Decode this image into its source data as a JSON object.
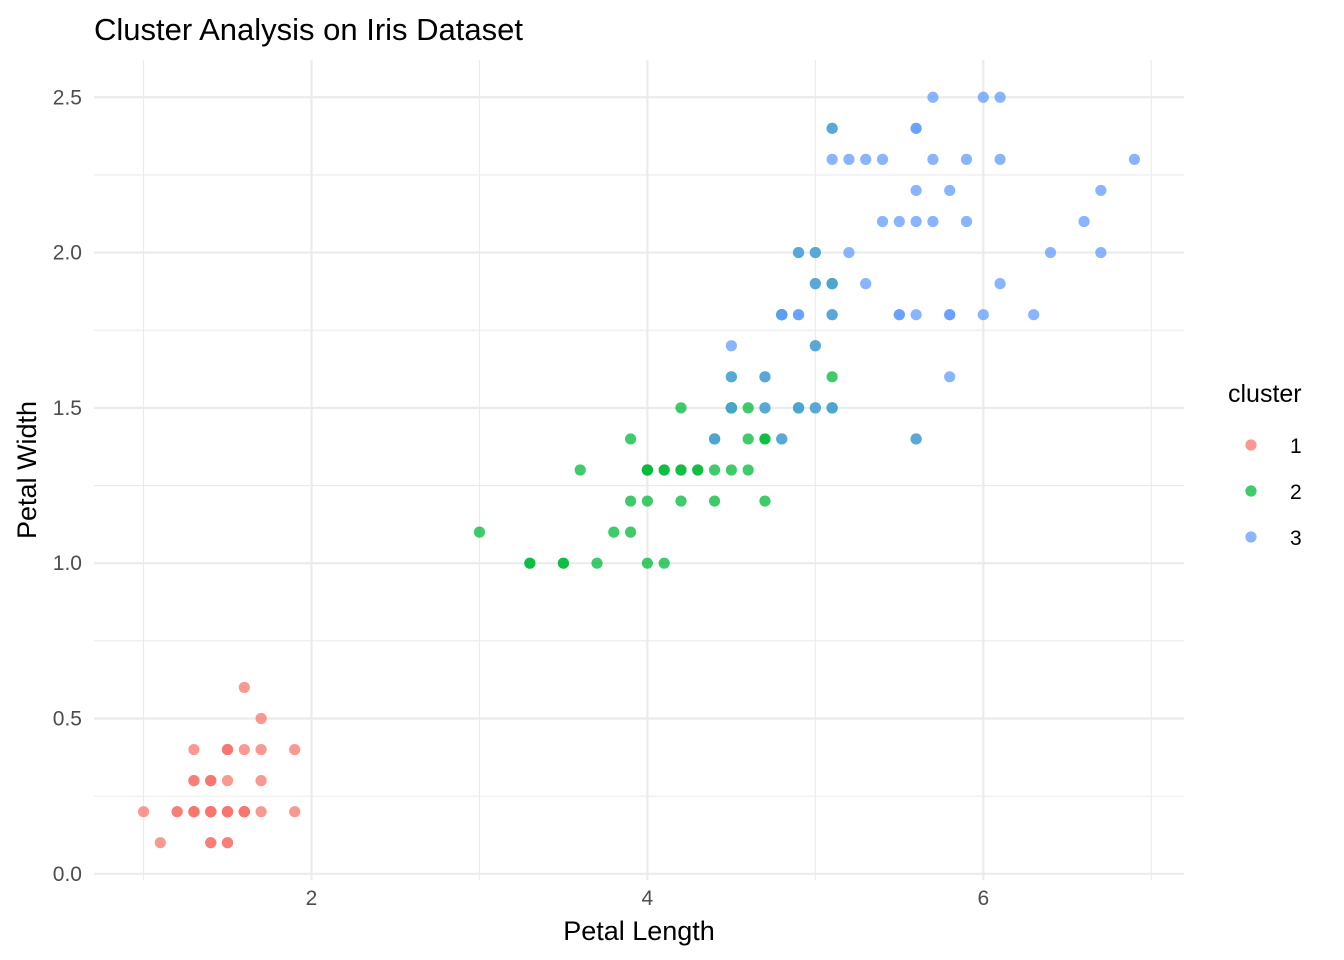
{
  "chart_data": {
    "type": "scatter",
    "title": "Cluster Analysis on Iris Dataset",
    "xlabel": "Petal Length",
    "ylabel": "Petal Width",
    "xlim": [
      0.705,
      7.195
    ],
    "ylim": [
      -0.02,
      2.62
    ],
    "x_ticks": [
      2,
      4,
      6
    ],
    "y_ticks": [
      0.0,
      0.5,
      1.0,
      1.5,
      2.0,
      2.5
    ],
    "y_tick_labels": [
      "0.0",
      "0.5",
      "1.0",
      "1.5",
      "2.0",
      "2.5"
    ],
    "grid": true,
    "legend": {
      "title": "cluster",
      "position": "right"
    },
    "series": [
      {
        "name": "1",
        "color": "#F8766D",
        "points": [
          [
            1.4,
            0.2
          ],
          [
            1.4,
            0.2
          ],
          [
            1.3,
            0.2
          ],
          [
            1.5,
            0.2
          ],
          [
            1.4,
            0.2
          ],
          [
            1.7,
            0.4
          ],
          [
            1.4,
            0.3
          ],
          [
            1.5,
            0.2
          ],
          [
            1.4,
            0.2
          ],
          [
            1.5,
            0.1
          ],
          [
            1.5,
            0.2
          ],
          [
            1.6,
            0.2
          ],
          [
            1.4,
            0.1
          ],
          [
            1.1,
            0.1
          ],
          [
            1.2,
            0.2
          ],
          [
            1.5,
            0.4
          ],
          [
            1.3,
            0.4
          ],
          [
            1.4,
            0.3
          ],
          [
            1.7,
            0.3
          ],
          [
            1.5,
            0.3
          ],
          [
            1.7,
            0.2
          ],
          [
            1.5,
            0.4
          ],
          [
            1.0,
            0.2
          ],
          [
            1.7,
            0.5
          ],
          [
            1.9,
            0.2
          ],
          [
            1.6,
            0.2
          ],
          [
            1.6,
            0.4
          ],
          [
            1.5,
            0.2
          ],
          [
            1.4,
            0.2
          ],
          [
            1.6,
            0.2
          ],
          [
            1.6,
            0.2
          ],
          [
            1.5,
            0.4
          ],
          [
            1.5,
            0.1
          ],
          [
            1.4,
            0.2
          ],
          [
            1.5,
            0.2
          ],
          [
            1.2,
            0.2
          ],
          [
            1.3,
            0.2
          ],
          [
            1.4,
            0.1
          ],
          [
            1.3,
            0.2
          ],
          [
            1.5,
            0.2
          ],
          [
            1.3,
            0.3
          ],
          [
            1.3,
            0.3
          ],
          [
            1.3,
            0.2
          ],
          [
            1.6,
            0.6
          ],
          [
            1.9,
            0.4
          ],
          [
            1.4,
            0.3
          ],
          [
            1.6,
            0.2
          ],
          [
            1.4,
            0.2
          ],
          [
            1.5,
            0.2
          ],
          [
            1.4,
            0.2
          ]
        ]
      },
      {
        "name": "2",
        "color": "#00BA38",
        "points": [
          [
            4.7,
            1.4
          ],
          [
            4.5,
            1.5
          ],
          [
            4.9,
            1.5
          ],
          [
            4.0,
            1.3
          ],
          [
            4.6,
            1.5
          ],
          [
            4.5,
            1.3
          ],
          [
            4.7,
            1.6
          ],
          [
            3.3,
            1.0
          ],
          [
            4.6,
            1.3
          ],
          [
            3.9,
            1.4
          ],
          [
            3.5,
            1.0
          ],
          [
            4.2,
            1.5
          ],
          [
            4.0,
            1.0
          ],
          [
            4.7,
            1.4
          ],
          [
            3.6,
            1.3
          ],
          [
            4.4,
            1.4
          ],
          [
            4.5,
            1.5
          ],
          [
            4.1,
            1.0
          ],
          [
            4.5,
            1.5
          ],
          [
            3.9,
            1.1
          ],
          [
            4.8,
            1.8
          ],
          [
            4.0,
            1.3
          ],
          [
            4.9,
            1.5
          ],
          [
            4.7,
            1.2
          ],
          [
            4.3,
            1.3
          ],
          [
            4.4,
            1.4
          ],
          [
            4.8,
            1.4
          ],
          [
            5.0,
            1.7
          ],
          [
            4.5,
            1.5
          ],
          [
            3.5,
            1.0
          ],
          [
            3.8,
            1.1
          ],
          [
            3.7,
            1.0
          ],
          [
            3.9,
            1.2
          ],
          [
            5.1,
            1.6
          ],
          [
            4.5,
            1.5
          ],
          [
            4.5,
            1.6
          ],
          [
            4.7,
            1.5
          ],
          [
            4.4,
            1.3
          ],
          [
            4.1,
            1.3
          ],
          [
            4.0,
            1.3
          ],
          [
            4.4,
            1.2
          ],
          [
            4.6,
            1.4
          ],
          [
            4.0,
            1.2
          ],
          [
            3.3,
            1.0
          ],
          [
            4.2,
            1.3
          ],
          [
            4.2,
            1.2
          ],
          [
            4.2,
            1.3
          ],
          [
            4.3,
            1.3
          ],
          [
            3.0,
            1.1
          ],
          [
            4.1,
            1.3
          ],
          [
            5.1,
            2.4
          ],
          [
            5.0,
            1.5
          ],
          [
            4.9,
            2.0
          ],
          [
            5.0,
            2.0
          ],
          [
            5.1,
            1.9
          ],
          [
            4.8,
            1.8
          ],
          [
            5.1,
            1.8
          ],
          [
            5.1,
            1.5
          ],
          [
            5.6,
            1.4
          ],
          [
            4.8,
            1.8
          ],
          [
            5.0,
            1.9
          ],
          [
            5.1,
            1.9
          ],
          [
            5.1,
            1.5
          ]
        ]
      },
      {
        "name": "3",
        "color": "#619CFF",
        "points": [
          [
            4.9,
            1.5
          ],
          [
            4.5,
            1.5
          ],
          [
            5.0,
            1.7
          ],
          [
            4.4,
            1.4
          ],
          [
            4.7,
            1.6
          ],
          [
            4.7,
            1.5
          ],
          [
            4.8,
            1.4
          ],
          [
            4.5,
            1.6
          ],
          [
            6.0,
            2.5
          ],
          [
            5.1,
            1.9
          ],
          [
            5.9,
            2.1
          ],
          [
            5.6,
            1.8
          ],
          [
            5.8,
            2.2
          ],
          [
            6.6,
            2.1
          ],
          [
            4.5,
            1.7
          ],
          [
            6.3,
            1.8
          ],
          [
            5.8,
            1.8
          ],
          [
            6.1,
            2.5
          ],
          [
            5.3,
            1.9
          ],
          [
            5.5,
            2.1
          ],
          [
            5.0,
            2.0
          ],
          [
            5.1,
            2.4
          ],
          [
            5.3,
            2.3
          ],
          [
            5.5,
            1.8
          ],
          [
            6.7,
            2.2
          ],
          [
            6.9,
            2.3
          ],
          [
            5.0,
            1.5
          ],
          [
            5.7,
            2.3
          ],
          [
            4.9,
            2.0
          ],
          [
            6.7,
            2.0
          ],
          [
            4.9,
            1.8
          ],
          [
            5.7,
            2.1
          ],
          [
            6.0,
            1.8
          ],
          [
            4.8,
            1.8
          ],
          [
            4.9,
            1.8
          ],
          [
            5.6,
            2.1
          ],
          [
            5.8,
            1.6
          ],
          [
            6.1,
            1.9
          ],
          [
            6.4,
            2.0
          ],
          [
            5.6,
            2.2
          ],
          [
            5.1,
            1.5
          ],
          [
            5.6,
            1.4
          ],
          [
            6.1,
            2.3
          ],
          [
            5.6,
            2.4
          ],
          [
            5.5,
            1.8
          ],
          [
            4.8,
            1.8
          ],
          [
            5.4,
            2.1
          ],
          [
            5.6,
            2.4
          ],
          [
            5.1,
            2.3
          ],
          [
            5.9,
            2.3
          ],
          [
            5.7,
            2.5
          ],
          [
            5.2,
            2.3
          ],
          [
            5.0,
            1.9
          ],
          [
            5.2,
            2.0
          ],
          [
            5.4,
            2.3
          ],
          [
            5.1,
            1.8
          ],
          [
            5.8,
            1.8
          ]
        ]
      }
    ]
  }
}
